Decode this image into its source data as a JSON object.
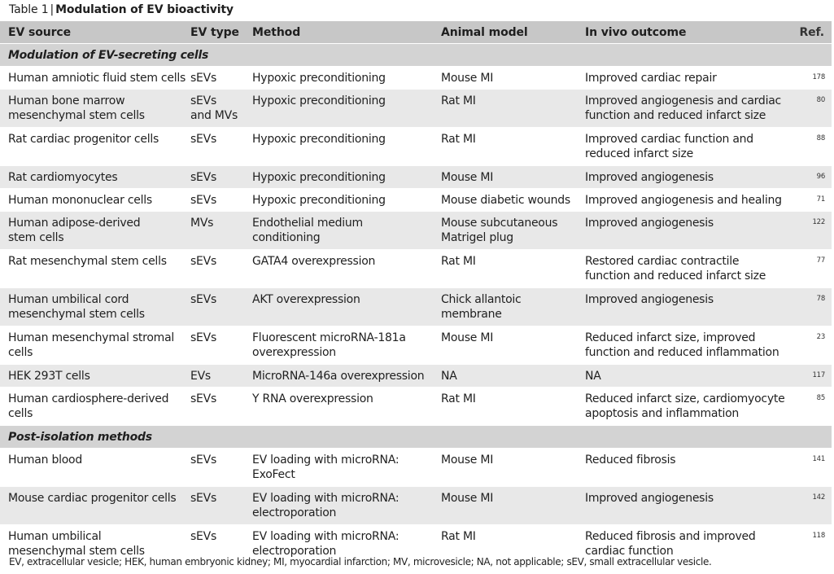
{
  "caption": {
    "number": "Table 1",
    "separator": "|",
    "title": "Modulation of EV bioactivity"
  },
  "table": {
    "headers": {
      "source": "EV source",
      "type": "EV type",
      "method": "Method",
      "animal": "Animal model",
      "outcome": "In vivo outcome",
      "ref": "Ref."
    },
    "sections": [
      {
        "title": "Modulation of EV-secreting cells",
        "rows": [
          {
            "source": [
              "Human amniotic fluid stem cells"
            ],
            "type": [
              "sEVs"
            ],
            "method": [
              "Hypoxic preconditioning"
            ],
            "animal": [
              "Mouse MI"
            ],
            "outcome": [
              "Improved cardiac repair"
            ],
            "ref": "178"
          },
          {
            "source": [
              "Human bone marrow",
              "mesenchymal stem cells"
            ],
            "type": [
              "sEVs",
              "and MVs"
            ],
            "method": [
              "Hypoxic preconditioning"
            ],
            "animal": [
              "Rat MI"
            ],
            "outcome": [
              "Improved angiogenesis and cardiac",
              "function and reduced infarct size"
            ],
            "ref": "80"
          },
          {
            "source": [
              "Rat cardiac progenitor cells"
            ],
            "type": [
              "sEVs"
            ],
            "method": [
              "Hypoxic preconditioning"
            ],
            "animal": [
              "Rat MI"
            ],
            "outcome": [
              "Improved cardiac function and",
              "reduced infarct size"
            ],
            "ref": "88"
          },
          {
            "source": [
              "Rat cardiomyocytes"
            ],
            "type": [
              "sEVs"
            ],
            "method": [
              "Hypoxic preconditioning"
            ],
            "animal": [
              "Mouse MI"
            ],
            "outcome": [
              "Improved angiogenesis"
            ],
            "ref": "96"
          },
          {
            "source": [
              "Human mononuclear cells"
            ],
            "type": [
              "sEVs"
            ],
            "method": [
              "Hypoxic preconditioning"
            ],
            "animal": [
              "Mouse diabetic wounds"
            ],
            "outcome": [
              "Improved angiogenesis and healing"
            ],
            "ref": "71"
          },
          {
            "source": [
              "Human adipose-derived",
              "stem cells"
            ],
            "type": [
              "MVs"
            ],
            "method": [
              "Endothelial medium",
              "conditioning"
            ],
            "animal": [
              "Mouse subcutaneous",
              "Matrigel plug"
            ],
            "outcome": [
              "Improved angiogenesis"
            ],
            "ref": "122"
          },
          {
            "source": [
              "Rat mesenchymal stem cells"
            ],
            "type": [
              "sEVs"
            ],
            "method": [
              "GATA4 overexpression"
            ],
            "animal": [
              "Rat MI"
            ],
            "outcome": [
              "Restored cardiac contractile",
              "function and reduced infarct size"
            ],
            "ref": "77"
          },
          {
            "source": [
              "Human umbilical cord",
              "mesenchymal stem cells"
            ],
            "type": [
              "sEVs"
            ],
            "method": [
              "AKT overexpression"
            ],
            "animal": [
              "Chick allantoic",
              "membrane"
            ],
            "outcome": [
              "Improved angiogenesis"
            ],
            "ref": "78"
          },
          {
            "source": [
              "Human mesenchymal stromal",
              "cells"
            ],
            "type": [
              "sEVs"
            ],
            "method": [
              "Fluorescent microRNA-181a",
              "overexpression"
            ],
            "animal": [
              "Mouse MI"
            ],
            "outcome": [
              "Reduced infarct size, improved",
              "function and reduced inflammation"
            ],
            "ref": "23"
          },
          {
            "source": [
              "HEK 293T cells"
            ],
            "type": [
              "EVs"
            ],
            "method": [
              "MicroRNA-146a overexpression"
            ],
            "animal": [
              "NA"
            ],
            "outcome": [
              "NA"
            ],
            "ref": "117"
          },
          {
            "source": [
              "Human cardiosphere-derived",
              "cells"
            ],
            "type": [
              "sEVs"
            ],
            "method": [
              "Y RNA overexpression"
            ],
            "animal": [
              "Rat MI"
            ],
            "outcome": [
              "Reduced infarct size, cardiomyocyte",
              "apoptosis and inflammation"
            ],
            "ref": "85"
          }
        ]
      },
      {
        "title": "Post-isolation methods",
        "rows": [
          {
            "source": [
              "Human blood"
            ],
            "type": [
              "sEVs"
            ],
            "method": [
              "EV loading with microRNA:",
              "ExoFect"
            ],
            "animal": [
              "Mouse MI"
            ],
            "outcome": [
              "Reduced fibrosis"
            ],
            "ref": "141"
          },
          {
            "source": [
              "Mouse cardiac progenitor cells"
            ],
            "type": [
              "sEVs"
            ],
            "method": [
              "EV loading with microRNA:",
              "electroporation"
            ],
            "animal": [
              "Mouse MI"
            ],
            "outcome": [
              "Improved angiogenesis"
            ],
            "ref": "142"
          },
          {
            "source": [
              "Human umbilical",
              "mesenchymal stem cells"
            ],
            "type": [
              "sEVs"
            ],
            "method": [
              "EV loading with microRNA:",
              "electroporation"
            ],
            "animal": [
              "Rat MI"
            ],
            "outcome": [
              "Reduced fibrosis and improved",
              "cardiac function"
            ],
            "ref": "118"
          }
        ]
      }
    ]
  },
  "footnote": "EV, extracellular vesicle; HEK, human embryonic kidney; MI, myocardial infarction; MV, microvesicle; NA, not applicable; sEV, small extracellular vesicle.",
  "colors": {
    "header_bg": "#c7c7c7",
    "section_bg": "#d3d3d3",
    "shaded_row_bg": "#e8e8e8",
    "plain_row_bg": "#ffffff"
  }
}
